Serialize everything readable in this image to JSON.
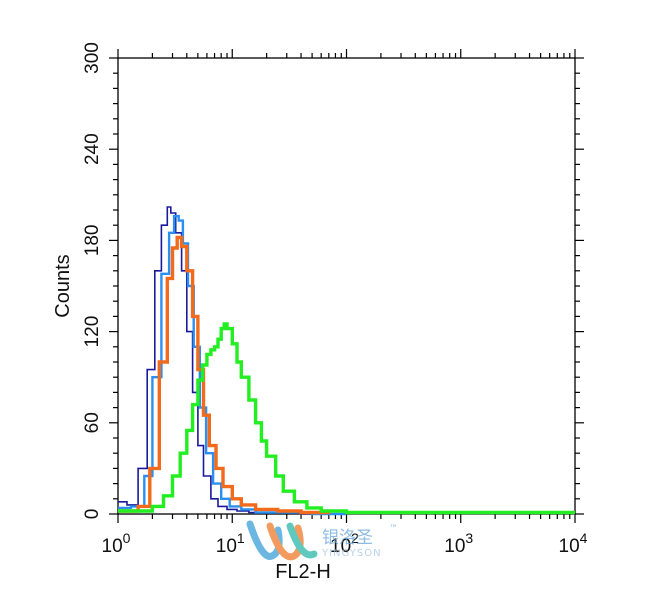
{
  "chart_data": {
    "type": "line",
    "title": "",
    "xlabel": "FL2-H",
    "ylabel": "Counts",
    "x_scale": "log",
    "xlim": [
      1,
      10000
    ],
    "ylim": [
      0,
      300
    ],
    "x_ticks": [
      {
        "value": 1,
        "base": "10",
        "exp": "0"
      },
      {
        "value": 10,
        "base": "10",
        "exp": "1"
      },
      {
        "value": 100,
        "base": "10",
        "exp": "2"
      },
      {
        "value": 1000,
        "base": "10",
        "exp": "3"
      },
      {
        "value": 10000,
        "base": "10",
        "exp": "4"
      }
    ],
    "y_ticks": [
      "0",
      "60",
      "120",
      "180",
      "240",
      "300"
    ],
    "grid": false,
    "series": [
      {
        "color": "#1a1a9c",
        "x": [
          1,
          1.2,
          1.5,
          1.8,
          2.1,
          2.4,
          2.7,
          2.9,
          3.2,
          3.6,
          4.0,
          4.5,
          5.0,
          5.6,
          6.5,
          7.5,
          9,
          11,
          14,
          20,
          40,
          100
        ],
        "y": [
          8,
          6,
          30,
          95,
          160,
          190,
          202,
          198,
          185,
          160,
          120,
          80,
          45,
          25,
          10,
          5,
          3,
          2,
          1,
          1,
          0,
          0
        ]
      },
      {
        "color": "#2a8ff0",
        "x": [
          1,
          1.3,
          1.7,
          2.0,
          2.4,
          2.8,
          3.1,
          3.4,
          3.7,
          4.1,
          4.6,
          5.2,
          5.9,
          6.8,
          8,
          9.5,
          12,
          16,
          25,
          50,
          100
        ],
        "y": [
          4,
          5,
          25,
          90,
          158,
          185,
          196,
          193,
          178,
          150,
          110,
          70,
          40,
          20,
          10,
          5,
          3,
          1,
          1,
          0,
          0
        ]
      },
      {
        "color": "#f26a1b",
        "x": [
          1,
          1.5,
          1.9,
          2.3,
          2.7,
          3.0,
          3.3,
          3.6,
          4.0,
          4.5,
          5.0,
          5.6,
          6.3,
          7.2,
          8.3,
          10,
          12,
          16,
          25,
          40,
          70
        ],
        "y": [
          2,
          5,
          30,
          100,
          155,
          175,
          182,
          176,
          160,
          130,
          95,
          65,
          45,
          30,
          18,
          10,
          6,
          3,
          2,
          1,
          0
        ]
      },
      {
        "color": "#22ee22",
        "x": [
          1,
          1.5,
          2,
          2.5,
          3,
          3.5,
          4,
          4.5,
          5,
          5.5,
          6,
          6.5,
          7,
          7.5,
          8,
          8.5,
          9,
          10,
          11,
          12,
          14,
          16,
          18,
          20,
          24,
          28,
          35,
          45,
          60,
          100,
          200,
          500,
          1000,
          3000,
          10000
        ],
        "y": [
          2,
          2,
          5,
          12,
          25,
          40,
          55,
          72,
          88,
          98,
          105,
          108,
          110,
          115,
          122,
          125,
          122,
          112,
          100,
          90,
          75,
          60,
          48,
          38,
          25,
          15,
          8,
          4,
          2,
          1,
          1,
          1,
          1,
          1,
          1
        ]
      }
    ]
  },
  "watermark": {
    "name_cn": "银洛圣",
    "name_en": "YINGYSON",
    "trademark": "™"
  }
}
